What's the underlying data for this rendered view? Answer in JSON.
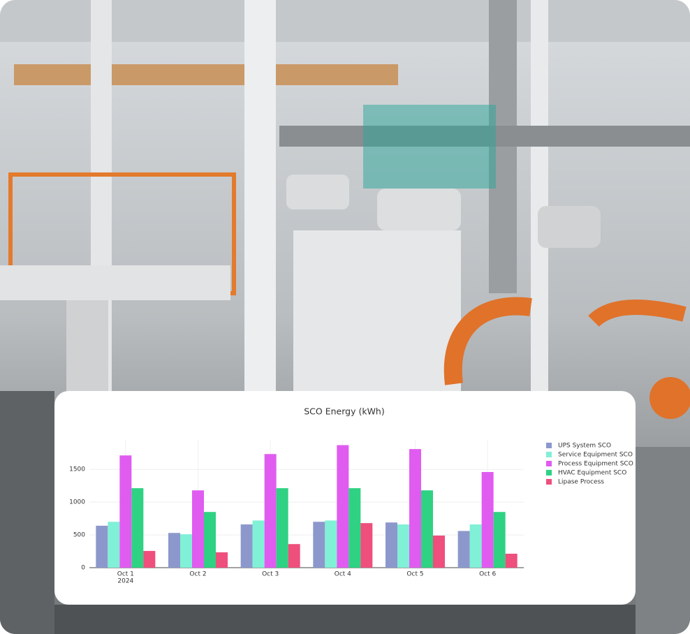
{
  "chart_data": {
    "type": "bar",
    "title": "SCO Energy (kWh)",
    "categories": [
      "Oct 1",
      "Oct 2",
      "Oct 3",
      "Oct 4",
      "Oct 5",
      "Oct 6"
    ],
    "x_year": "2024",
    "series": [
      {
        "name": "UPS System SCO",
        "color": "#8c98cc",
        "values": [
          640,
          530,
          660,
          700,
          690,
          560
        ]
      },
      {
        "name": "Service Equipment SCO",
        "color": "#80f0d6",
        "values": [
          700,
          510,
          720,
          720,
          660,
          660
        ]
      },
      {
        "name": "Process Equipment SCO",
        "color": "#e05cf0",
        "values": [
          1713,
          1180,
          1734,
          1870,
          1810,
          1460
        ]
      },
      {
        "name": "HVAC Equipment SCO",
        "color": "#2ed282",
        "values": [
          1213,
          850,
          1213,
          1213,
          1180,
          850
        ]
      },
      {
        "name": "Lipase Process",
        "color": "#ee4f7c",
        "values": [
          255,
          234,
          360,
          680,
          490,
          213
        ]
      }
    ],
    "ylim": [
      0,
      1950
    ],
    "yticks": [
      0,
      500,
      1000,
      1500
    ],
    "grid": true,
    "legend": "right"
  }
}
